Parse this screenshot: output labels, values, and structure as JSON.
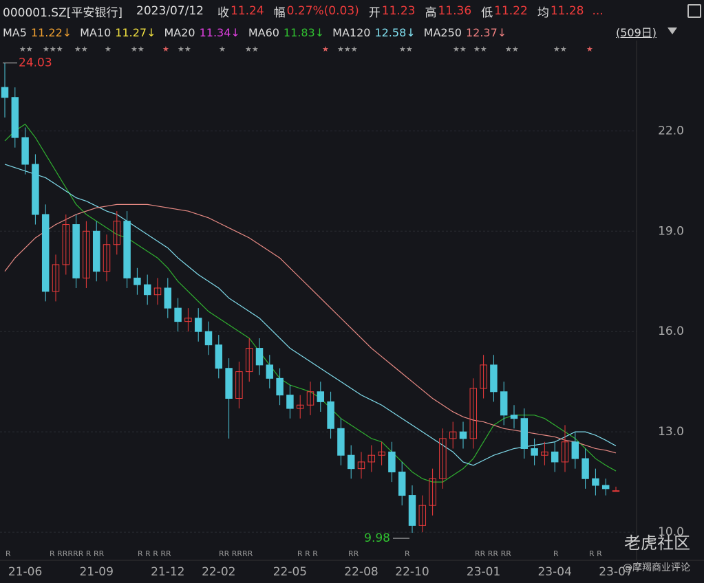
{
  "header": {
    "symbol": "000001.SZ[平安银行]",
    "date": "2023/07/12",
    "fields": [
      {
        "label": "收",
        "value": "11.24"
      },
      {
        "label": "幅",
        "value": "0.27%(0.03)"
      },
      {
        "label": "开",
        "value": "11.23"
      },
      {
        "label": "高",
        "value": "11.36"
      },
      {
        "label": "低",
        "value": "11.22"
      },
      {
        "label": "均",
        "value": "11.28"
      }
    ],
    "more": "..."
  },
  "ma_legend": [
    {
      "name": "MA5",
      "value": "11.22↓",
      "color": "#f0a030"
    },
    {
      "name": "MA10",
      "value": "11.27↓",
      "color": "#f0e040"
    },
    {
      "name": "MA20",
      "value": "11.34↓",
      "color": "#e040e0"
    },
    {
      "name": "MA60",
      "value": "11.83↓",
      "color": "#30c030"
    },
    {
      "name": "MA120",
      "value": "12.58↓",
      "color": "#80e0f0"
    },
    {
      "name": "MA250",
      "value": "12.37↓",
      "color": "#f08080"
    }
  ],
  "period": "(509日)",
  "watermark": {
    "brand": "老虎社区",
    "author": "@摩羯商业评论"
  },
  "chart_data": {
    "type": "candlestick",
    "categories": [
      null,
      null,
      "21-06",
      null,
      null,
      null,
      null,
      null,
      null,
      "21-09",
      null,
      null,
      null,
      null,
      null,
      null,
      "21-12",
      null,
      null,
      null,
      null,
      "22-02",
      null,
      null,
      null,
      null,
      null,
      null,
      "22-05",
      null,
      null,
      null,
      null,
      null,
      null,
      "22-08",
      null,
      null,
      null,
      null,
      "22-10",
      null,
      null,
      null,
      null,
      null,
      null,
      "23-01",
      null,
      null,
      null,
      null,
      null,
      null,
      "23-04",
      null,
      null,
      null,
      null,
      null,
      "23-07"
    ],
    "open": [
      23.3,
      23.0,
      21.8,
      21.0,
      19.5,
      17.2,
      18.0,
      19.2,
      17.6,
      19.0,
      17.8,
      18.6,
      19.3,
      17.6,
      17.4,
      17.1,
      17.3,
      16.7,
      16.3,
      16.4,
      16.0,
      15.6,
      14.9,
      14.0,
      14.8,
      15.5,
      15.0,
      14.6,
      14.1,
      13.7,
      13.8,
      14.2,
      13.9,
      13.1,
      12.3,
      11.9,
      12.1,
      12.3,
      12.4,
      11.8,
      11.1,
      10.2,
      10.8,
      11.6,
      12.8,
      13.0,
      12.8,
      14.3,
      15.0,
      14.2,
      13.5,
      13.4,
      12.5,
      12.3,
      12.4,
      12.1,
      12.7,
      12.2,
      11.6,
      11.4,
      11.23
    ],
    "high": [
      24.03,
      23.3,
      22.1,
      21.3,
      19.8,
      18.3,
      19.5,
      19.5,
      19.3,
      19.3,
      18.9,
      19.6,
      19.6,
      17.9,
      17.7,
      17.6,
      17.6,
      17.0,
      16.7,
      16.7,
      16.3,
      15.9,
      15.2,
      15.1,
      15.8,
      15.8,
      15.3,
      14.9,
      14.4,
      14.1,
      14.5,
      14.5,
      14.2,
      13.4,
      12.6,
      12.4,
      12.6,
      12.7,
      12.7,
      12.1,
      11.4,
      11.1,
      11.9,
      13.1,
      13.3,
      13.3,
      14.6,
      15.3,
      15.3,
      14.5,
      13.8,
      13.7,
      12.8,
      12.7,
      12.7,
      13.2,
      13.0,
      12.5,
      11.9,
      11.6,
      11.36
    ],
    "low": [
      22.4,
      21.5,
      20.7,
      19.2,
      16.9,
      16.9,
      17.7,
      17.3,
      17.3,
      17.5,
      17.5,
      18.3,
      17.3,
      17.1,
      16.8,
      16.8,
      16.4,
      16.0,
      16.0,
      15.7,
      15.3,
      14.6,
      12.8,
      13.7,
      14.5,
      14.7,
      14.3,
      13.8,
      13.4,
      13.4,
      13.5,
      13.6,
      12.8,
      12.0,
      11.6,
      11.6,
      11.8,
      12.0,
      11.5,
      10.8,
      9.98,
      10.0,
      10.5,
      11.3,
      12.5,
      12.5,
      12.5,
      14.0,
      13.9,
      13.2,
      13.1,
      12.2,
      12.0,
      12.0,
      11.8,
      11.8,
      11.9,
      11.3,
      11.1,
      11.1,
      11.22
    ],
    "close": [
      23.0,
      21.8,
      21.0,
      19.5,
      17.2,
      18.0,
      19.2,
      17.6,
      19.0,
      17.8,
      18.6,
      19.3,
      17.6,
      17.4,
      17.1,
      17.3,
      16.7,
      16.3,
      16.4,
      16.0,
      15.6,
      14.9,
      14.0,
      14.8,
      15.5,
      15.0,
      14.6,
      14.1,
      13.7,
      13.8,
      14.2,
      13.9,
      13.1,
      12.3,
      11.9,
      12.1,
      12.3,
      12.4,
      11.8,
      11.1,
      10.2,
      10.8,
      11.6,
      12.8,
      13.0,
      12.8,
      14.3,
      15.0,
      14.2,
      13.5,
      13.4,
      12.5,
      12.3,
      12.4,
      12.1,
      12.7,
      12.2,
      11.6,
      11.4,
      11.3,
      11.24
    ],
    "up_color": "#ee3b3b",
    "down_color": "#4ec9dc",
    "series": [
      {
        "name": "MA60",
        "color": "#30b030",
        "values": [
          21.7,
          22.0,
          22.2,
          21.8,
          21.3,
          20.8,
          20.3,
          19.8,
          19.5,
          19.3,
          19.1,
          18.9,
          18.8,
          18.6,
          18.4,
          18.2,
          17.9,
          17.5,
          17.2,
          16.9,
          16.6,
          16.4,
          16.2,
          16.0,
          15.8,
          15.4,
          15.0,
          14.6,
          14.4,
          14.3,
          14.2,
          14.0,
          13.7,
          13.4,
          13.2,
          13.0,
          12.8,
          12.7,
          12.4,
          12.1,
          11.8,
          11.6,
          11.5,
          11.5,
          11.7,
          11.9,
          12.2,
          12.7,
          13.2,
          13.4,
          13.5,
          13.5,
          13.5,
          13.4,
          13.2,
          13.0,
          12.8,
          12.5,
          12.2,
          12.0,
          11.83
        ]
      },
      {
        "name": "MA120",
        "color": "#80dcec",
        "values": [
          21.0,
          20.9,
          20.8,
          20.7,
          20.6,
          20.4,
          20.2,
          20.0,
          19.9,
          19.75,
          19.6,
          19.5,
          19.3,
          19.1,
          18.9,
          18.7,
          18.5,
          18.2,
          17.95,
          17.7,
          17.5,
          17.3,
          17.0,
          16.8,
          16.6,
          16.4,
          16.1,
          15.8,
          15.5,
          15.3,
          15.1,
          14.9,
          14.7,
          14.5,
          14.3,
          14.1,
          13.95,
          13.8,
          13.6,
          13.4,
          13.2,
          13.0,
          12.8,
          12.6,
          12.4,
          12.1,
          12.0,
          12.15,
          12.3,
          12.4,
          12.5,
          12.55,
          12.6,
          12.65,
          12.7,
          12.85,
          13.0,
          13.0,
          12.9,
          12.75,
          12.58
        ]
      },
      {
        "name": "MA250",
        "color": "#e88a84",
        "values": [
          17.8,
          18.2,
          18.5,
          18.8,
          19.0,
          19.2,
          19.35,
          19.5,
          19.6,
          19.7,
          19.75,
          19.8,
          19.8,
          19.8,
          19.8,
          19.75,
          19.7,
          19.65,
          19.6,
          19.5,
          19.4,
          19.25,
          19.1,
          18.95,
          18.8,
          18.6,
          18.4,
          18.2,
          17.9,
          17.6,
          17.3,
          17.0,
          16.7,
          16.4,
          16.1,
          15.8,
          15.5,
          15.25,
          15.0,
          14.75,
          14.5,
          14.25,
          14.0,
          13.8,
          13.6,
          13.45,
          13.35,
          13.3,
          13.2,
          13.1,
          13.05,
          13.0,
          12.95,
          12.9,
          12.85,
          12.75,
          12.7,
          12.6,
          12.5,
          12.45,
          12.37
        ]
      }
    ],
    "ylim": [
      9.2,
      24.7
    ],
    "yticks": [
      {
        "value": 10,
        "label": "10.0"
      },
      {
        "value": 13,
        "label": "13.0"
      },
      {
        "value": 16,
        "label": "16.0"
      },
      {
        "value": 19,
        "label": "19.0"
      },
      {
        "value": 22,
        "label": "22.0"
      }
    ],
    "grid": true,
    "annotations": [
      {
        "text": "24.03",
        "value": 24.03,
        "index": 0
      },
      {
        "text": "9.98",
        "value": 9.98,
        "index": 40
      }
    ]
  }
}
